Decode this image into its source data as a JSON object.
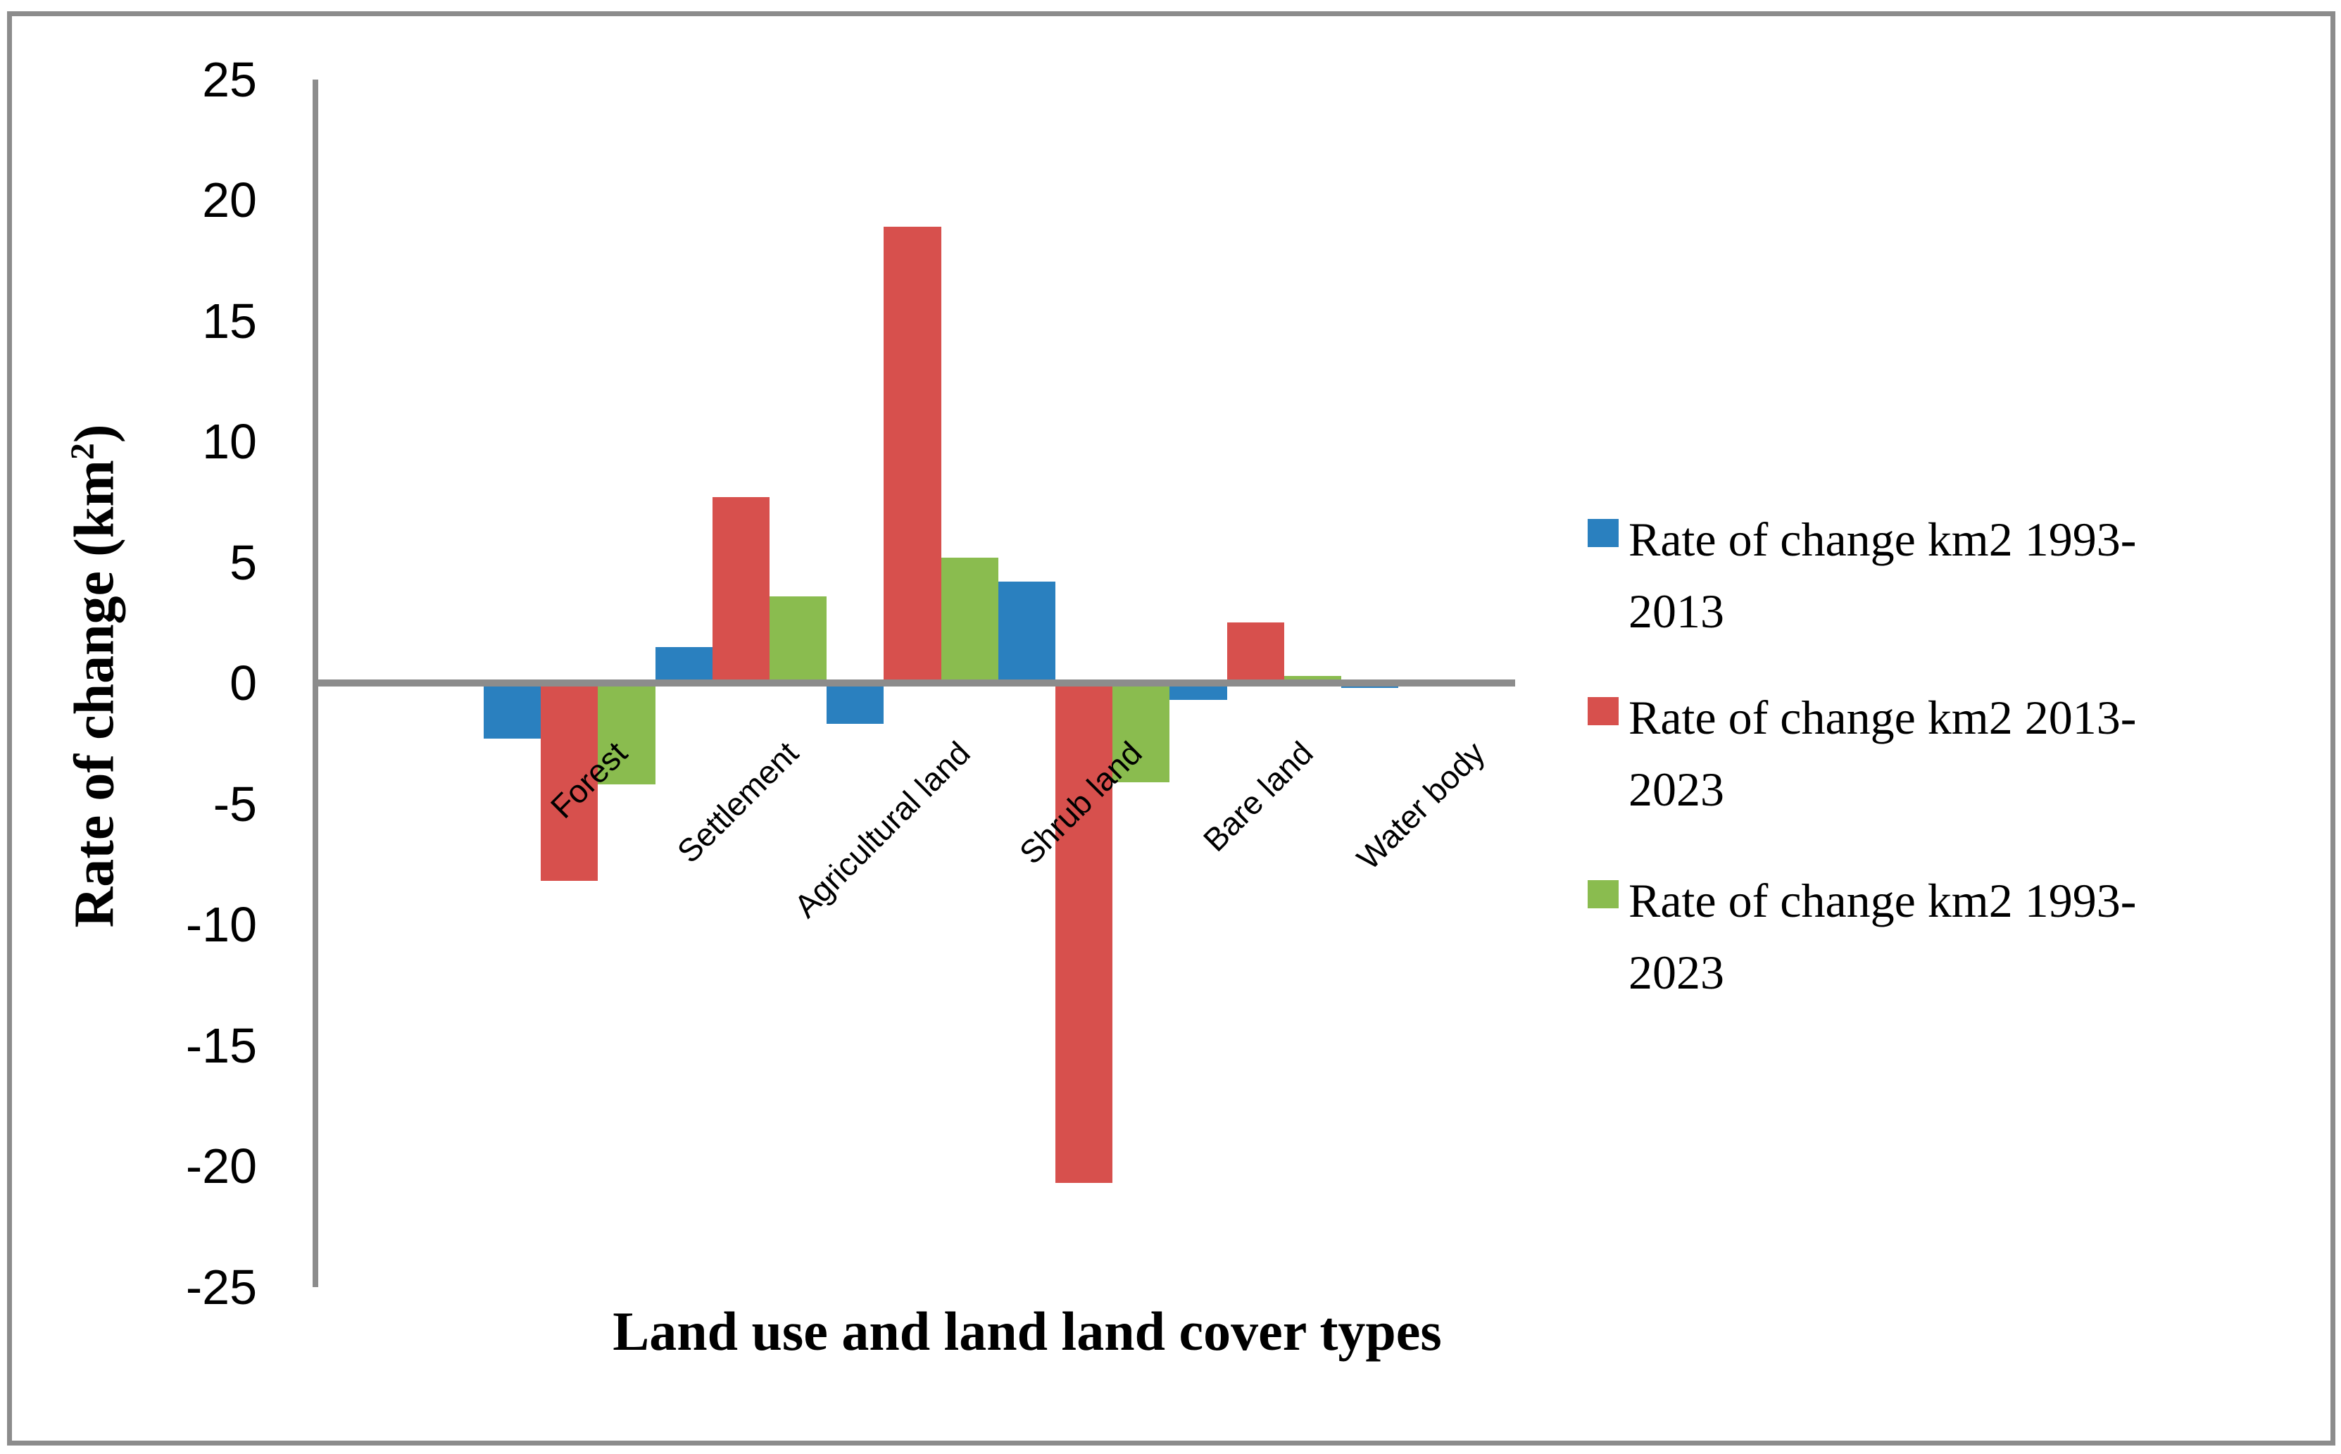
{
  "chart_data": {
    "type": "bar",
    "title": "",
    "categories": [
      "Forest",
      "Settlement",
      "Agricultural land",
      "Shrub land",
      "Bare land",
      "Water body"
    ],
    "series": [
      {
        "name": "Rate of change km2 1993-2013",
        "color": "#2A80BF",
        "values": [
          -2.3,
          1.5,
          -1.7,
          4.2,
          -0.7,
          -0.2
        ]
      },
      {
        "name": "Rate of change km2 2013-2023",
        "color": "#D7504D",
        "values": [
          -8.2,
          7.7,
          18.9,
          -20.7,
          2.5,
          0
        ]
      },
      {
        "name": "Rate of change km2 1993-2023",
        "color": "#8ABC4F",
        "values": [
          -4.2,
          3.6,
          5.2,
          -4.1,
          0.3,
          -0.1
        ]
      }
    ],
    "xlabel": "Land use and land land cover types",
    "ylabel": "Rate of change (km²)",
    "ylabel_display": {
      "pre": "Rate of change (km",
      "sup": "2",
      "post": ")"
    },
    "ylim": [
      -25,
      25
    ],
    "ytick_step": 5,
    "yticks": [
      25,
      20,
      15,
      10,
      5,
      0,
      -5,
      -10,
      -15,
      -20,
      -25
    ],
    "grid": false,
    "legend_position": "right",
    "legend_entries": [
      {
        "lines": [
          "Rate of change km2 1993-",
          "2013"
        ]
      },
      {
        "lines": [
          "Rate of change km2 2013-",
          "2023"
        ]
      },
      {
        "lines": [
          "Rate of change km2 1993-",
          "2023"
        ]
      }
    ]
  },
  "colors": {
    "axis_line": "#8C8C8C",
    "frame_border": "#8C8C8C",
    "background": "#FFFFFF",
    "text": "#000000"
  }
}
